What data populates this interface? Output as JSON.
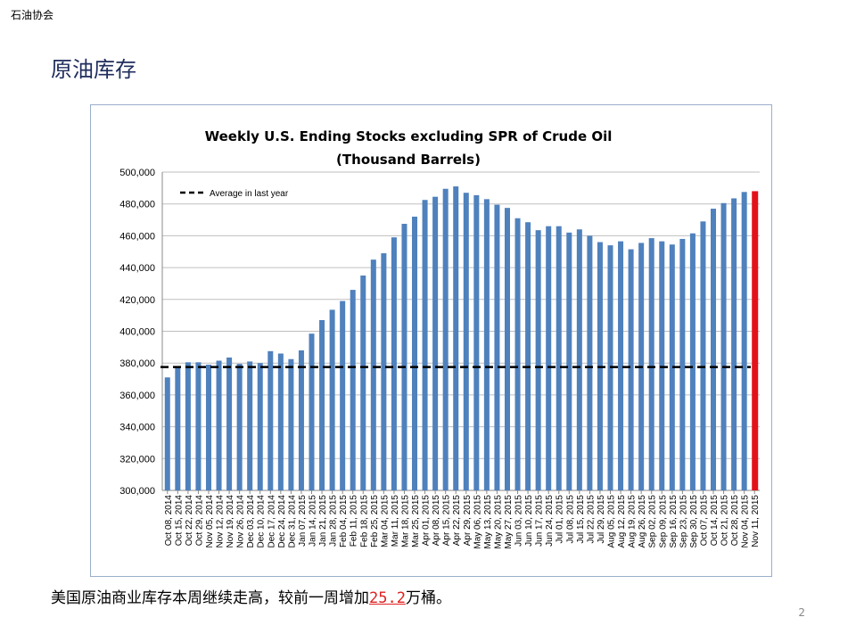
{
  "org_label": "石油协会",
  "slide_title": "原油库存",
  "caption": {
    "prefix": "美国原油商业库存本周继续走高，较前一周增加",
    "highlight": "25.2",
    "suffix": "万桶。"
  },
  "page_number": "2",
  "colors": {
    "bar": "#4f81bd",
    "last_bar": "#e3111a",
    "avg_line": "#000000",
    "grid": "#bfbfbf"
  },
  "chart_data": {
    "type": "bar",
    "title_lines": [
      "Weekly U.S. Ending Stocks excluding SPR of Crude Oil",
      "(Thousand Barrels)"
    ],
    "ylim": [
      300000,
      500000
    ],
    "yticks": [
      300000,
      320000,
      340000,
      360000,
      380000,
      400000,
      420000,
      440000,
      460000,
      480000,
      500000
    ],
    "ytick_labels": [
      "300,000",
      "320,000",
      "340,000",
      "360,000",
      "380,000",
      "400,000",
      "420,000",
      "440,000",
      "460,000",
      "480,000",
      "500,000"
    ],
    "grid": true,
    "legend": {
      "label": "Average in last year",
      "placement": "top-left"
    },
    "average": 377500,
    "categories": [
      "Oct 08, 2014",
      "Oct 15, 2014",
      "Oct 22, 2014",
      "Oct 29, 2014",
      "Nov 05, 2014",
      "Nov 12, 2014",
      "Nov 19, 2014",
      "Nov 26, 2014",
      "Dec 03, 2014",
      "Dec 10, 2014",
      "Dec 17, 2014",
      "Dec 24, 2014",
      "Dec 31, 2014",
      "Jan 07, 2015",
      "Jan 14, 2015",
      "Jan 21, 2015",
      "Jan 28, 2015",
      "Feb 04, 2015",
      "Feb 11, 2015",
      "Feb 18, 2015",
      "Feb 25, 2015",
      "Mar 04, 2015",
      "Mar 11, 2015",
      "Mar 18, 2015",
      "Mar 25, 2015",
      "Apr 01, 2015",
      "Apr 08, 2015",
      "Apr 15, 2015",
      "Apr 22, 2015",
      "Apr 29, 2015",
      "May 06, 2015",
      "May 13, 2015",
      "May 20, 2015",
      "May 27, 2015",
      "Jun 03, 2015",
      "Jun 10, 2015",
      "Jun 17, 2015",
      "Jun 24, 2015",
      "Jul 01, 2015",
      "Jul 08, 2015",
      "Jul 15, 2015",
      "Jul 22, 2015",
      "Jul 29, 2015",
      "Aug 05, 2015",
      "Aug 12, 2015",
      "Aug 19, 2015",
      "Aug 26, 2015",
      "Sep 02, 2015",
      "Sep 09, 2015",
      "Sep 16, 2015",
      "Sep 23, 2015",
      "Sep 30, 2015",
      "Oct 07, 2015",
      "Oct 14, 2015",
      "Oct 21, 2015",
      "Oct 28, 2015",
      "Nov 04, 2015",
      "Nov 11, 2015"
    ],
    "values": [
      371000,
      378000,
      380500,
      380500,
      379000,
      381500,
      383500,
      379500,
      381000,
      380000,
      387500,
      386000,
      382500,
      388000,
      398500,
      407000,
      413500,
      419000,
      426000,
      435000,
      445000,
      449000,
      459000,
      467500,
      472000,
      482500,
      484500,
      489500,
      491000,
      487000,
      485500,
      483000,
      479500,
      477500,
      471000,
      468500,
      463500,
      466000,
      466000,
      462000,
      464000,
      460000,
      456000,
      454000,
      456500,
      451500,
      455500,
      458500,
      456500,
      454500,
      458000,
      461500,
      469000,
      477000,
      480500,
      483500,
      487500,
      488000
    ]
  }
}
